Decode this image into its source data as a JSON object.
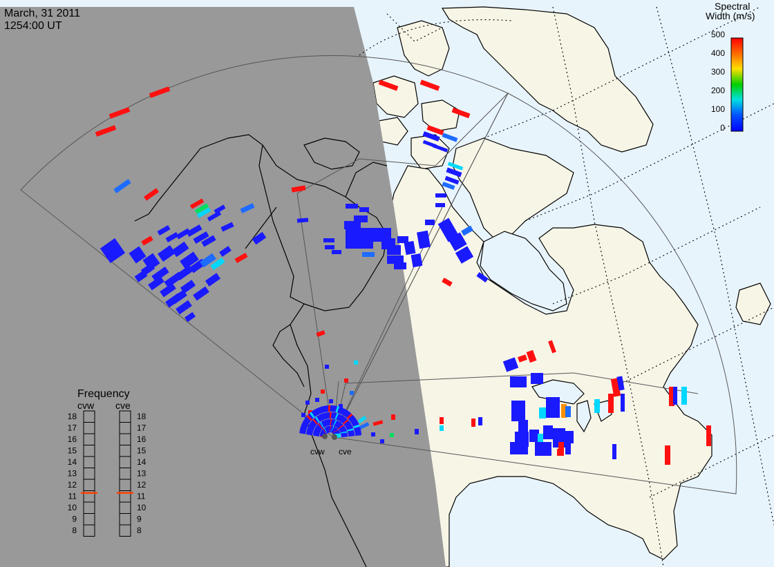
{
  "header": {
    "date": "March, 31 2011",
    "time": "1254:00 UT"
  },
  "colorbar": {
    "title_line1": "Spectral",
    "title_line2": "Width (m/s)",
    "ticks": [
      "500",
      "400",
      "300",
      "200",
      "100",
      "0"
    ],
    "colors": [
      "#ff0000",
      "#ff8000",
      "#ffe000",
      "#00d000",
      "#00e0e0",
      "#0050ff",
      "#0000ff"
    ]
  },
  "radars": {
    "west_label": "cvw",
    "east_label": "cve"
  },
  "frequency": {
    "title": "Frequency",
    "left_label": "cvw",
    "right_label": "cve",
    "ticks": [
      "18",
      "17",
      "16",
      "15",
      "14",
      "13",
      "12",
      "11",
      "10",
      "9",
      "8"
    ],
    "cvw_value": 11,
    "cve_value": 11,
    "marker_color": "#ff4000"
  },
  "colors": {
    "night": "#999999",
    "day_ocean": "#e8f4fc",
    "land": "#f7f5e6"
  }
}
